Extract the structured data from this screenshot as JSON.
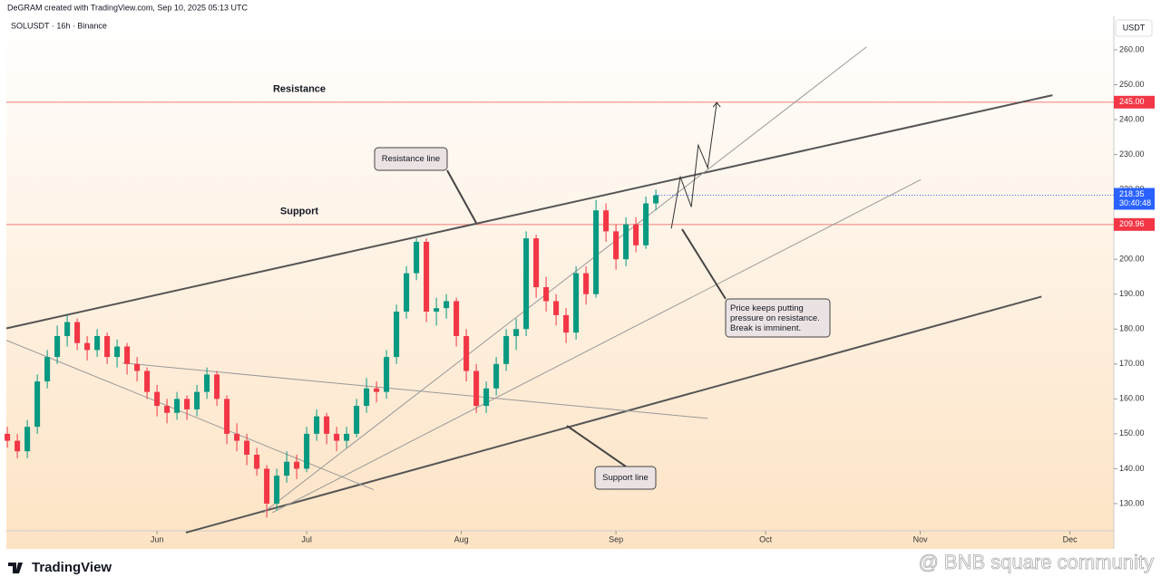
{
  "header": "DeGRAM created with TradingView.com, Sep 10, 2025 05:13 UTC",
  "brand": "TradingView",
  "watermark": "@ BNB square community",
  "chart_data": {
    "type": "candlestick",
    "symbol": "SOLUSDT · 16h · Binance",
    "currency": "USDT",
    "up_color": "#089981",
    "down_color": "#f23645",
    "xlim": [
      120.8,
      342.8
    ],
    "ylim": [
      122.2,
      269.6
    ],
    "xticks": [
      {
        "value": 151,
        "label": "Jun"
      },
      {
        "value": 181,
        "label": "Jul"
      },
      {
        "value": 212,
        "label": "Aug"
      },
      {
        "value": 243,
        "label": "Sep"
      },
      {
        "value": 273,
        "label": "Oct"
      },
      {
        "value": 304,
        "label": "Nov"
      },
      {
        "value": 334,
        "label": "Dec"
      }
    ],
    "yticks": [
      {
        "value": 130,
        "label": "130.00"
      },
      {
        "value": 140,
        "label": "140.00"
      },
      {
        "value": 150,
        "label": "150.00"
      },
      {
        "value": 160,
        "label": "160.00"
      },
      {
        "value": 170,
        "label": "170.00"
      },
      {
        "value": 180,
        "label": "180.00"
      },
      {
        "value": 190,
        "label": "190.00"
      },
      {
        "value": 200,
        "label": "200.00"
      },
      {
        "value": 210,
        "label": "210.00"
      },
      {
        "value": 220,
        "label": "220.00"
      },
      {
        "value": 230,
        "label": "230.00"
      },
      {
        "value": 240,
        "label": "240.00"
      },
      {
        "value": 250,
        "label": "250.00"
      },
      {
        "value": 260,
        "label": "260.00"
      }
    ],
    "candles": [
      [
        121,
        150,
        152,
        146,
        148
      ],
      [
        123,
        148,
        150,
        143,
        145
      ],
      [
        125,
        145,
        154,
        143,
        152
      ],
      [
        127,
        152,
        167,
        150,
        165
      ],
      [
        129,
        165,
        174,
        163,
        172
      ],
      [
        131,
        172,
        181,
        170,
        178
      ],
      [
        133,
        178,
        184,
        175,
        182
      ],
      [
        135,
        182,
        183,
        174,
        176
      ],
      [
        137,
        176,
        178,
        171,
        174
      ],
      [
        139,
        174,
        180,
        172,
        178
      ],
      [
        141,
        178,
        179,
        170,
        172
      ],
      [
        143,
        172,
        177,
        169,
        175
      ],
      [
        145,
        175,
        176,
        167,
        170
      ],
      [
        147,
        170,
        172,
        165,
        168
      ],
      [
        149,
        168,
        169,
        160,
        162
      ],
      [
        151,
        162,
        164,
        155,
        158
      ],
      [
        153,
        158,
        160,
        153,
        156
      ],
      [
        155,
        156,
        162,
        154,
        160
      ],
      [
        157,
        160,
        161,
        154,
        157
      ],
      [
        159,
        157,
        164,
        155,
        162
      ],
      [
        161,
        162,
        169,
        160,
        167
      ],
      [
        163,
        167,
        168,
        158,
        160
      ],
      [
        165,
        160,
        161,
        147,
        150
      ],
      [
        167,
        150,
        153,
        145,
        148
      ],
      [
        169,
        148,
        150,
        141,
        144
      ],
      [
        171,
        144,
        146,
        138,
        140
      ],
      [
        173,
        140,
        141,
        126,
        130
      ],
      [
        175,
        130,
        140,
        128,
        138
      ],
      [
        177,
        138,
        145,
        136,
        142
      ],
      [
        179,
        142,
        144,
        137,
        140
      ],
      [
        181,
        140,
        152,
        139,
        150
      ],
      [
        183,
        150,
        157,
        148,
        155
      ],
      [
        185,
        155,
        156,
        147,
        150
      ],
      [
        187,
        150,
        152,
        145,
        148
      ],
      [
        189,
        148,
        152,
        146,
        150
      ],
      [
        191,
        150,
        160,
        149,
        158
      ],
      [
        193,
        158,
        166,
        156,
        163
      ],
      [
        195,
        163,
        165,
        159,
        162
      ],
      [
        197,
        162,
        174,
        160,
        172
      ],
      [
        199,
        172,
        187,
        170,
        185
      ],
      [
        201,
        185,
        198,
        183,
        196
      ],
      [
        203,
        196,
        206,
        194,
        205
      ],
      [
        205,
        205,
        206,
        182,
        185
      ],
      [
        207,
        185,
        189,
        181,
        186
      ],
      [
        209,
        186,
        190,
        183,
        188
      ],
      [
        211,
        188,
        189,
        175,
        178
      ],
      [
        213,
        178,
        180,
        165,
        168
      ],
      [
        215,
        168,
        170,
        156,
        158
      ],
      [
        217,
        158,
        165,
        156,
        163
      ],
      [
        219,
        163,
        172,
        161,
        170
      ],
      [
        221,
        170,
        180,
        168,
        178
      ],
      [
        223,
        178,
        183,
        174,
        180
      ],
      [
        225,
        180,
        208,
        178,
        206
      ],
      [
        227,
        206,
        207,
        189,
        192
      ],
      [
        229,
        192,
        195,
        185,
        188
      ],
      [
        231,
        188,
        190,
        181,
        184
      ],
      [
        233,
        184,
        186,
        176,
        179
      ],
      [
        235,
        179,
        198,
        177,
        196
      ],
      [
        237,
        196,
        198,
        187,
        190
      ],
      [
        239,
        190,
        217,
        189,
        214
      ],
      [
        241,
        214,
        216,
        205,
        208
      ],
      [
        243,
        208,
        210,
        197,
        200
      ],
      [
        245,
        200,
        212,
        198,
        210
      ],
      [
        247,
        210,
        212,
        202,
        204
      ],
      [
        249,
        204,
        218,
        203,
        216
      ],
      [
        251,
        216,
        220,
        214,
        218.35
      ]
    ],
    "last_price": 218.35,
    "countdown": "30:40:48",
    "levels": [
      {
        "name": "Resistance",
        "value": 245,
        "label": "245.00",
        "color": "#f28b82"
      },
      {
        "name": "Support",
        "value": 209.96,
        "label": "209.96",
        "color": "#f28b82"
      }
    ],
    "trendlines": [
      {
        "points": [
          [
            120.8,
            180.2
          ],
          [
            330.5,
            247
          ]
        ],
        "width": 2
      },
      {
        "points": [
          [
            156.8,
            121.7
          ],
          [
            328.3,
            189.3
          ]
        ],
        "width": 2
      },
      {
        "points": [
          [
            120.8,
            176.8
          ],
          [
            194.4,
            134
          ]
        ],
        "width": 1
      },
      {
        "points": [
          [
            144.1,
            170.3
          ],
          [
            261.4,
            154.4
          ]
        ],
        "width": 1
      },
      {
        "points": [
          [
            172.3,
            127.4
          ],
          [
            293.2,
            260.8
          ]
        ],
        "width": 1
      },
      {
        "points": [
          [
            174.1,
            127.4
          ],
          [
            304.1,
            222.8
          ]
        ],
        "width": 1
      }
    ],
    "projection": [
      [
        254.1,
        208.8
      ],
      [
        255.9,
        223.6
      ],
      [
        258.1,
        215
      ],
      [
        259.5,
        232.7
      ],
      [
        261.4,
        226.2
      ],
      [
        263.2,
        244.9
      ]
    ],
    "annotations": [
      {
        "text": "Resistance line",
        "target": [
          [
            413,
            163,
            80,
            25
          ],
          [
            493,
            188,
            525,
            246
          ]
        ]
      },
      {
        "text": "Support line",
        "target": [
          [
            656,
            515,
            67,
            25
          ],
          [
            690,
            515,
            625,
            470
          ]
        ]
      },
      {
        "text": "Price keeps putting pressure on resistance. Break is imminent.",
        "target": [
          [
            800,
            330,
            115,
            42
          ],
          [
            800,
            330,
            752,
            253
          ]
        ]
      }
    ]
  }
}
